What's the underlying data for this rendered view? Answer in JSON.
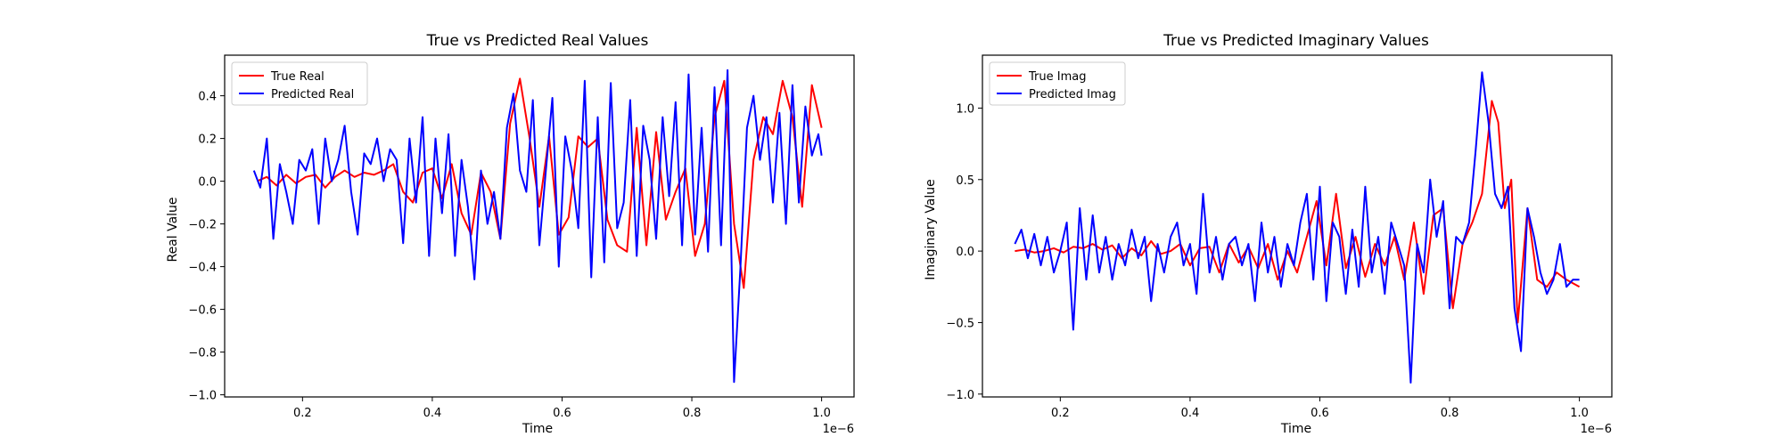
{
  "chart_data": [
    {
      "type": "line",
      "title": "True vs Predicted Real Values",
      "xlabel": "Time",
      "ylabel": "Real Value",
      "x_offset_label": "1e−6",
      "xlim": [
        0.08,
        1.05
      ],
      "ylim": [
        -1.01,
        0.59
      ],
      "xticks": [
        0.2,
        0.4,
        0.6,
        0.8,
        1.0
      ],
      "xtick_labels": [
        "0.2",
        "0.4",
        "0.6",
        "0.8",
        "1.0"
      ],
      "yticks": [
        -1.0,
        -0.8,
        -0.6,
        -0.4,
        -0.2,
        0.0,
        0.2,
        0.4
      ],
      "ytick_labels": [
        "−1.0",
        "−0.8",
        "−0.6",
        "−0.4",
        "−0.2",
        "0.0",
        "0.2",
        "0.4"
      ],
      "legend_position": "top-left",
      "grid": false,
      "series": [
        {
          "name": "True Real",
          "color": "#ff0000",
          "x": [
            0.13,
            0.145,
            0.16,
            0.175,
            0.19,
            0.205,
            0.22,
            0.235,
            0.25,
            0.265,
            0.28,
            0.295,
            0.31,
            0.325,
            0.34,
            0.355,
            0.37,
            0.385,
            0.4,
            0.415,
            0.43,
            0.445,
            0.46,
            0.475,
            0.49,
            0.505,
            0.52,
            0.535,
            0.55,
            0.565,
            0.58,
            0.595,
            0.61,
            0.625,
            0.64,
            0.655,
            0.67,
            0.685,
            0.7,
            0.715,
            0.73,
            0.745,
            0.76,
            0.775,
            0.79,
            0.805,
            0.82,
            0.835,
            0.85,
            0.865,
            0.88,
            0.895,
            0.91,
            0.925,
            0.94,
            0.955,
            0.97,
            0.985,
            1.0
          ],
          "y": [
            0.0,
            0.02,
            -0.02,
            0.03,
            -0.01,
            0.02,
            0.03,
            -0.03,
            0.02,
            0.05,
            0.02,
            0.04,
            0.03,
            0.05,
            0.08,
            -0.05,
            -0.1,
            0.04,
            0.06,
            -0.08,
            0.08,
            -0.15,
            -0.25,
            0.04,
            -0.05,
            -0.27,
            0.27,
            0.48,
            0.2,
            -0.12,
            0.21,
            -0.25,
            -0.17,
            0.21,
            0.16,
            0.2,
            -0.18,
            -0.3,
            -0.33,
            0.25,
            -0.3,
            0.23,
            -0.18,
            -0.05,
            0.06,
            -0.35,
            -0.2,
            0.3,
            0.47,
            -0.2,
            -0.5,
            0.1,
            0.3,
            0.22,
            0.47,
            0.3,
            -0.12,
            0.45,
            0.25
          ]
        },
        {
          "name": "Predicted Real",
          "color": "#0000ff",
          "x": [
            0.125,
            0.135,
            0.145,
            0.155,
            0.165,
            0.175,
            0.185,
            0.195,
            0.205,
            0.215,
            0.225,
            0.235,
            0.245,
            0.255,
            0.265,
            0.275,
            0.285,
            0.295,
            0.305,
            0.315,
            0.325,
            0.335,
            0.345,
            0.355,
            0.365,
            0.375,
            0.385,
            0.395,
            0.405,
            0.415,
            0.425,
            0.435,
            0.445,
            0.455,
            0.465,
            0.475,
            0.485,
            0.495,
            0.505,
            0.515,
            0.525,
            0.535,
            0.545,
            0.555,
            0.565,
            0.575,
            0.585,
            0.595,
            0.605,
            0.615,
            0.625,
            0.635,
            0.645,
            0.655,
            0.665,
            0.675,
            0.685,
            0.695,
            0.705,
            0.715,
            0.725,
            0.735,
            0.745,
            0.755,
            0.765,
            0.775,
            0.785,
            0.795,
            0.805,
            0.815,
            0.825,
            0.835,
            0.845,
            0.855,
            0.865,
            0.875,
            0.885,
            0.895,
            0.905,
            0.915,
            0.925,
            0.935,
            0.945,
            0.955,
            0.965,
            0.975,
            0.985,
            0.995,
            1.0
          ],
          "y": [
            0.05,
            -0.03,
            0.2,
            -0.27,
            0.08,
            -0.05,
            -0.2,
            0.1,
            0.05,
            0.15,
            -0.2,
            0.2,
            0.0,
            0.1,
            0.26,
            -0.05,
            -0.25,
            0.13,
            0.08,
            0.2,
            0.0,
            0.15,
            0.1,
            -0.29,
            0.2,
            -0.1,
            0.3,
            -0.35,
            0.2,
            -0.15,
            0.22,
            -0.35,
            0.1,
            -0.12,
            -0.46,
            0.05,
            -0.2,
            -0.05,
            -0.27,
            0.25,
            0.41,
            0.05,
            -0.05,
            0.38,
            -0.3,
            0.05,
            0.39,
            -0.4,
            0.21,
            0.05,
            -0.22,
            0.47,
            -0.45,
            0.3,
            -0.38,
            0.46,
            -0.22,
            -0.1,
            0.38,
            -0.35,
            0.26,
            0.1,
            -0.27,
            0.3,
            -0.07,
            0.37,
            -0.3,
            0.5,
            -0.25,
            0.25,
            -0.33,
            0.44,
            -0.3,
            0.52,
            -0.94,
            -0.4,
            0.25,
            0.4,
            0.1,
            0.3,
            -0.1,
            0.32,
            -0.2,
            0.45,
            -0.1,
            0.35,
            0.12,
            0.22,
            0.12
          ]
        }
      ]
    },
    {
      "type": "line",
      "title": "True vs Predicted Imaginary Values",
      "xlabel": "Time",
      "ylabel": "Imaginary Value",
      "x_offset_label": "1e−6",
      "xlim": [
        0.08,
        1.05
      ],
      "ylim": [
        -1.02,
        1.37
      ],
      "xticks": [
        0.2,
        0.4,
        0.6,
        0.8,
        1.0
      ],
      "xtick_labels": [
        "0.2",
        "0.4",
        "0.6",
        "0.8",
        "1.0"
      ],
      "yticks": [
        -1.0,
        -0.5,
        0.0,
        0.5,
        1.0
      ],
      "ytick_labels": [
        "−1.0",
        "−0.5",
        "0.0",
        "0.5",
        "1.0"
      ],
      "legend_position": "top-left",
      "grid": false,
      "series": [
        {
          "name": "True Imag",
          "color": "#ff0000",
          "x": [
            0.13,
            0.145,
            0.16,
            0.175,
            0.19,
            0.205,
            0.22,
            0.235,
            0.25,
            0.265,
            0.28,
            0.295,
            0.31,
            0.325,
            0.34,
            0.355,
            0.37,
            0.385,
            0.4,
            0.415,
            0.43,
            0.445,
            0.46,
            0.475,
            0.49,
            0.505,
            0.52,
            0.535,
            0.55,
            0.565,
            0.58,
            0.595,
            0.61,
            0.625,
            0.64,
            0.655,
            0.67,
            0.685,
            0.7,
            0.715,
            0.73,
            0.745,
            0.76,
            0.775,
            0.79,
            0.805,
            0.82,
            0.835,
            0.85,
            0.865,
            0.875,
            0.885,
            0.895,
            0.905,
            0.92,
            0.935,
            0.95,
            0.965,
            0.98,
            1.0
          ],
          "y": [
            0.0,
            0.01,
            -0.01,
            0.0,
            0.02,
            -0.01,
            0.03,
            0.02,
            0.05,
            0.01,
            0.04,
            -0.05,
            0.02,
            -0.03,
            0.07,
            -0.02,
            0.0,
            0.05,
            -0.1,
            0.02,
            0.03,
            -0.15,
            0.05,
            -0.08,
            0.03,
            -0.12,
            0.05,
            -0.2,
            0.0,
            -0.15,
            0.1,
            0.35,
            -0.1,
            0.4,
            -0.12,
            0.1,
            -0.18,
            0.05,
            -0.1,
            0.1,
            -0.2,
            0.2,
            -0.3,
            0.25,
            0.3,
            -0.4,
            0.05,
            0.2,
            0.4,
            1.05,
            0.9,
            0.3,
            0.5,
            -0.5,
            0.3,
            -0.2,
            -0.25,
            -0.15,
            -0.2,
            -0.25
          ]
        },
        {
          "name": "Predicted Imag",
          "color": "#0000ff",
          "x": [
            0.13,
            0.14,
            0.15,
            0.16,
            0.17,
            0.18,
            0.19,
            0.2,
            0.21,
            0.22,
            0.23,
            0.24,
            0.25,
            0.26,
            0.27,
            0.28,
            0.29,
            0.3,
            0.31,
            0.32,
            0.33,
            0.34,
            0.35,
            0.36,
            0.37,
            0.38,
            0.39,
            0.4,
            0.41,
            0.42,
            0.43,
            0.44,
            0.45,
            0.46,
            0.47,
            0.48,
            0.49,
            0.5,
            0.51,
            0.52,
            0.53,
            0.54,
            0.55,
            0.56,
            0.57,
            0.58,
            0.59,
            0.6,
            0.61,
            0.62,
            0.63,
            0.64,
            0.65,
            0.66,
            0.67,
            0.68,
            0.69,
            0.7,
            0.71,
            0.72,
            0.73,
            0.74,
            0.75,
            0.76,
            0.77,
            0.78,
            0.79,
            0.8,
            0.81,
            0.82,
            0.83,
            0.84,
            0.85,
            0.86,
            0.87,
            0.88,
            0.89,
            0.9,
            0.91,
            0.92,
            0.93,
            0.94,
            0.95,
            0.96,
            0.97,
            0.98,
            0.99,
            1.0
          ],
          "y": [
            0.05,
            0.15,
            -0.05,
            0.12,
            -0.1,
            0.1,
            -0.15,
            0.0,
            0.2,
            -0.55,
            0.3,
            -0.2,
            0.25,
            -0.15,
            0.1,
            -0.2,
            0.05,
            -0.1,
            0.15,
            -0.05,
            0.1,
            -0.35,
            0.05,
            -0.15,
            0.1,
            0.2,
            -0.1,
            0.05,
            -0.3,
            0.4,
            -0.15,
            0.1,
            -0.2,
            0.05,
            0.1,
            -0.1,
            0.05,
            -0.35,
            0.2,
            -0.15,
            0.1,
            -0.25,
            0.05,
            -0.1,
            0.2,
            0.4,
            -0.2,
            0.45,
            -0.35,
            0.2,
            0.1,
            -0.3,
            0.15,
            -0.25,
            0.45,
            -0.15,
            0.1,
            -0.3,
            0.2,
            0.05,
            -0.1,
            -0.92,
            0.05,
            -0.15,
            0.5,
            0.1,
            0.35,
            -0.4,
            0.1,
            0.05,
            0.2,
            0.7,
            1.25,
            0.9,
            0.4,
            0.3,
            0.45,
            -0.4,
            -0.7,
            0.3,
            0.1,
            -0.15,
            -0.3,
            -0.2,
            0.05,
            -0.25,
            -0.2,
            -0.2
          ]
        }
      ]
    }
  ]
}
